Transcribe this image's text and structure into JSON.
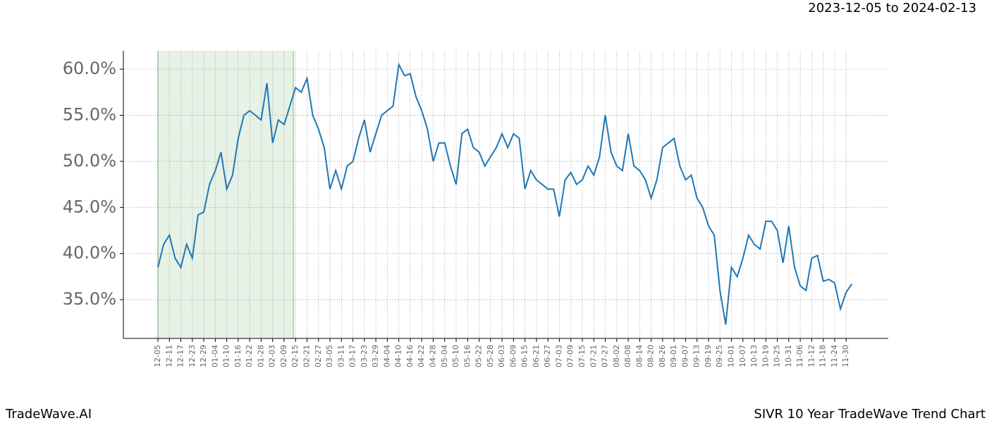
{
  "chart_data": {
    "type": "line",
    "date_range": "2023-12-05 to 2024-02-13",
    "footer_left": "TradeWave.AI",
    "footer_right": "SIVR 10 Year TradeWave Trend Chart",
    "categories": [
      "12-05",
      null,
      "12-11",
      null,
      "12-17",
      null,
      "12-23",
      null,
      "12-29",
      null,
      "01-04",
      null,
      "01-10",
      null,
      "01-16",
      null,
      "01-22",
      null,
      "01-28",
      null,
      "02-03",
      null,
      "02-09",
      null,
      "02-15",
      null,
      "02-21",
      null,
      "02-27",
      null,
      "03-05",
      null,
      "03-11",
      null,
      "03-17",
      null,
      "03-23",
      null,
      "03-29",
      null,
      "04-04",
      null,
      "04-10",
      null,
      "04-16",
      null,
      "04-22",
      null,
      "04-28",
      null,
      "05-04",
      null,
      "05-10",
      null,
      "05-16",
      null,
      "05-22",
      null,
      "05-28",
      null,
      "06-03",
      null,
      "06-09",
      null,
      "06-15",
      null,
      "06-21",
      null,
      "06-27",
      null,
      "07-03",
      null,
      "07-09",
      null,
      "07-15",
      null,
      "07-21",
      null,
      "07-27",
      null,
      "08-02",
      null,
      "08-08",
      null,
      "08-14",
      null,
      "08-20",
      null,
      "08-26",
      null,
      "09-01",
      null,
      "09-07",
      null,
      "09-13",
      null,
      "09-19",
      null,
      "09-25",
      null,
      "10-01",
      null,
      "10-07",
      null,
      "10-13",
      null,
      "10-19",
      null,
      "10-25",
      null,
      "10-31",
      null,
      "11-06",
      null,
      "11-12",
      null,
      "11-18",
      null,
      "11-24",
      null,
      "11-30",
      null
    ],
    "series": [
      {
        "color": "#1f77b4",
        "values": [
          38.5,
          41.0,
          42.0,
          39.5,
          38.5,
          41.0,
          39.5,
          44.2,
          44.5,
          47.5,
          49.0,
          51.0,
          47.0,
          48.5,
          52.5,
          55.0,
          55.5,
          55.0,
          54.5,
          58.5,
          52.0,
          54.5,
          54.0,
          56.0,
          58.0,
          57.5,
          59.0,
          55.0,
          53.5,
          51.5,
          47.0,
          49.0,
          47.0,
          49.5,
          50.0,
          52.5,
          54.5,
          51.0,
          53.0,
          55.0,
          55.5,
          56.0,
          60.5,
          59.3,
          59.5,
          57.0,
          55.5,
          53.5,
          50.0,
          52.0,
          52.0,
          49.5,
          47.5,
          53.0,
          53.5,
          51.5,
          51.0,
          49.5,
          50.5,
          51.5,
          53.0,
          51.5,
          53.0,
          52.5,
          47.0,
          49.0,
          48.0,
          47.5,
          47.0,
          47.0,
          44.0,
          48.0,
          48.8,
          47.5,
          48.0,
          49.5,
          48.5,
          50.5,
          55.0,
          51.0,
          49.5,
          49.0,
          53.0,
          49.5,
          49.0,
          48.0,
          46.0,
          48.0,
          51.5,
          52.0,
          52.5,
          49.5,
          48.0,
          48.5,
          46.0,
          45.0,
          43.0,
          42.0,
          36.0,
          32.3,
          38.5,
          37.5,
          39.5,
          42.0,
          41.0,
          40.5,
          43.5,
          43.5,
          42.5,
          39.0,
          43.0,
          38.5,
          36.5,
          36.0,
          39.5,
          39.8,
          37.0,
          37.2,
          36.8,
          34.0,
          35.8,
          36.7
        ]
      }
    ],
    "shade": [
      "12-05",
      "02-15"
    ],
    "shade_color": "#e6f2e6",
    "ylim": [
      30.8,
      62.0
    ],
    "yticks": [
      {
        "value": 35,
        "label": "35.0%"
      },
      {
        "value": 40,
        "label": "40.0%"
      },
      {
        "value": 45,
        "label": "45.0%"
      },
      {
        "value": 50,
        "label": "50.0%"
      },
      {
        "value": 55,
        "label": "55.0%"
      },
      {
        "value": 60,
        "label": "60.0%"
      }
    ],
    "grid": true
  }
}
